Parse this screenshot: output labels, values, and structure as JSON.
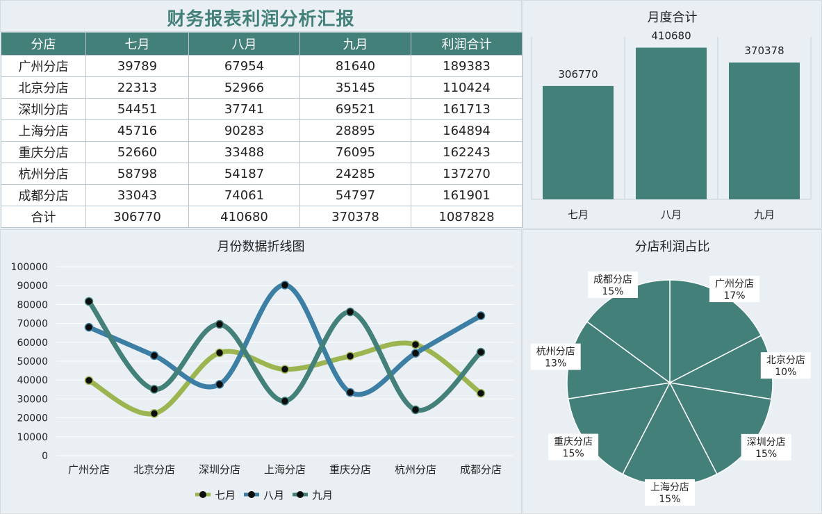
{
  "report": {
    "title": "财务报表利润分析汇报",
    "headers": [
      "分店",
      "七月",
      "八月",
      "九月",
      "利润合计"
    ],
    "rows": [
      [
        "广州分店",
        "39789",
        "67954",
        "81640",
        "189383"
      ],
      [
        "北京分店",
        "22313",
        "52966",
        "35145",
        "110424"
      ],
      [
        "深圳分店",
        "54451",
        "37741",
        "69521",
        "161713"
      ],
      [
        "上海分店",
        "45716",
        "90283",
        "28895",
        "164894"
      ],
      [
        "重庆分店",
        "52660",
        "33488",
        "76095",
        "162243"
      ],
      [
        "杭州分店",
        "58798",
        "54187",
        "24285",
        "137270"
      ],
      [
        "成都分店",
        "33043",
        "74061",
        "54797",
        "161901"
      ],
      [
        "合计",
        "306770",
        "410680",
        "370378",
        "1087828"
      ]
    ]
  },
  "colors": {
    "teal": "#43807a",
    "olive": "#9db550",
    "blue": "#3d7ea4",
    "marker": "#0d0d0d"
  },
  "chart_data": [
    {
      "type": "bar",
      "title": "月度合计",
      "categories": [
        "七月",
        "八月",
        "九月"
      ],
      "values": [
        306770,
        410680,
        370378
      ],
      "data_labels": [
        "306770",
        "410680",
        "370378"
      ],
      "ylim": [
        0,
        440000
      ],
      "grid": false
    },
    {
      "type": "line",
      "title": "月份数据折线图",
      "categories": [
        "广州分店",
        "北京分店",
        "深圳分店",
        "上海分店",
        "重庆分店",
        "杭州分店",
        "成都分店"
      ],
      "series": [
        {
          "name": "七月",
          "values": [
            39789,
            22313,
            54451,
            45716,
            52660,
            58798,
            33043
          ]
        },
        {
          "name": "八月",
          "values": [
            67954,
            52966,
            37741,
            90283,
            33488,
            54187,
            74061
          ]
        },
        {
          "name": "九月",
          "values": [
            81640,
            35145,
            69521,
            28895,
            76095,
            24285,
            54797
          ]
        }
      ],
      "ylim": [
        0,
        100000
      ],
      "yticks": [
        "100000",
        "90000",
        "80000",
        "70000",
        "60000",
        "50000",
        "40000",
        "30000",
        "20000",
        "10000",
        "0"
      ],
      "grid": true,
      "smooth": true,
      "legend": "bottom"
    },
    {
      "type": "pie",
      "title": "分店利润占比",
      "labels": [
        "广州分店",
        "北京分店",
        "深圳分店",
        "上海分店",
        "重庆分店",
        "杭州分店",
        "成都分店"
      ],
      "values": [
        189383,
        110424,
        161713,
        164894,
        162243,
        137270,
        161901
      ],
      "percent_labels": [
        "17%",
        "10%",
        "15%",
        "15%",
        "15%",
        "13%",
        "15%"
      ]
    }
  ]
}
